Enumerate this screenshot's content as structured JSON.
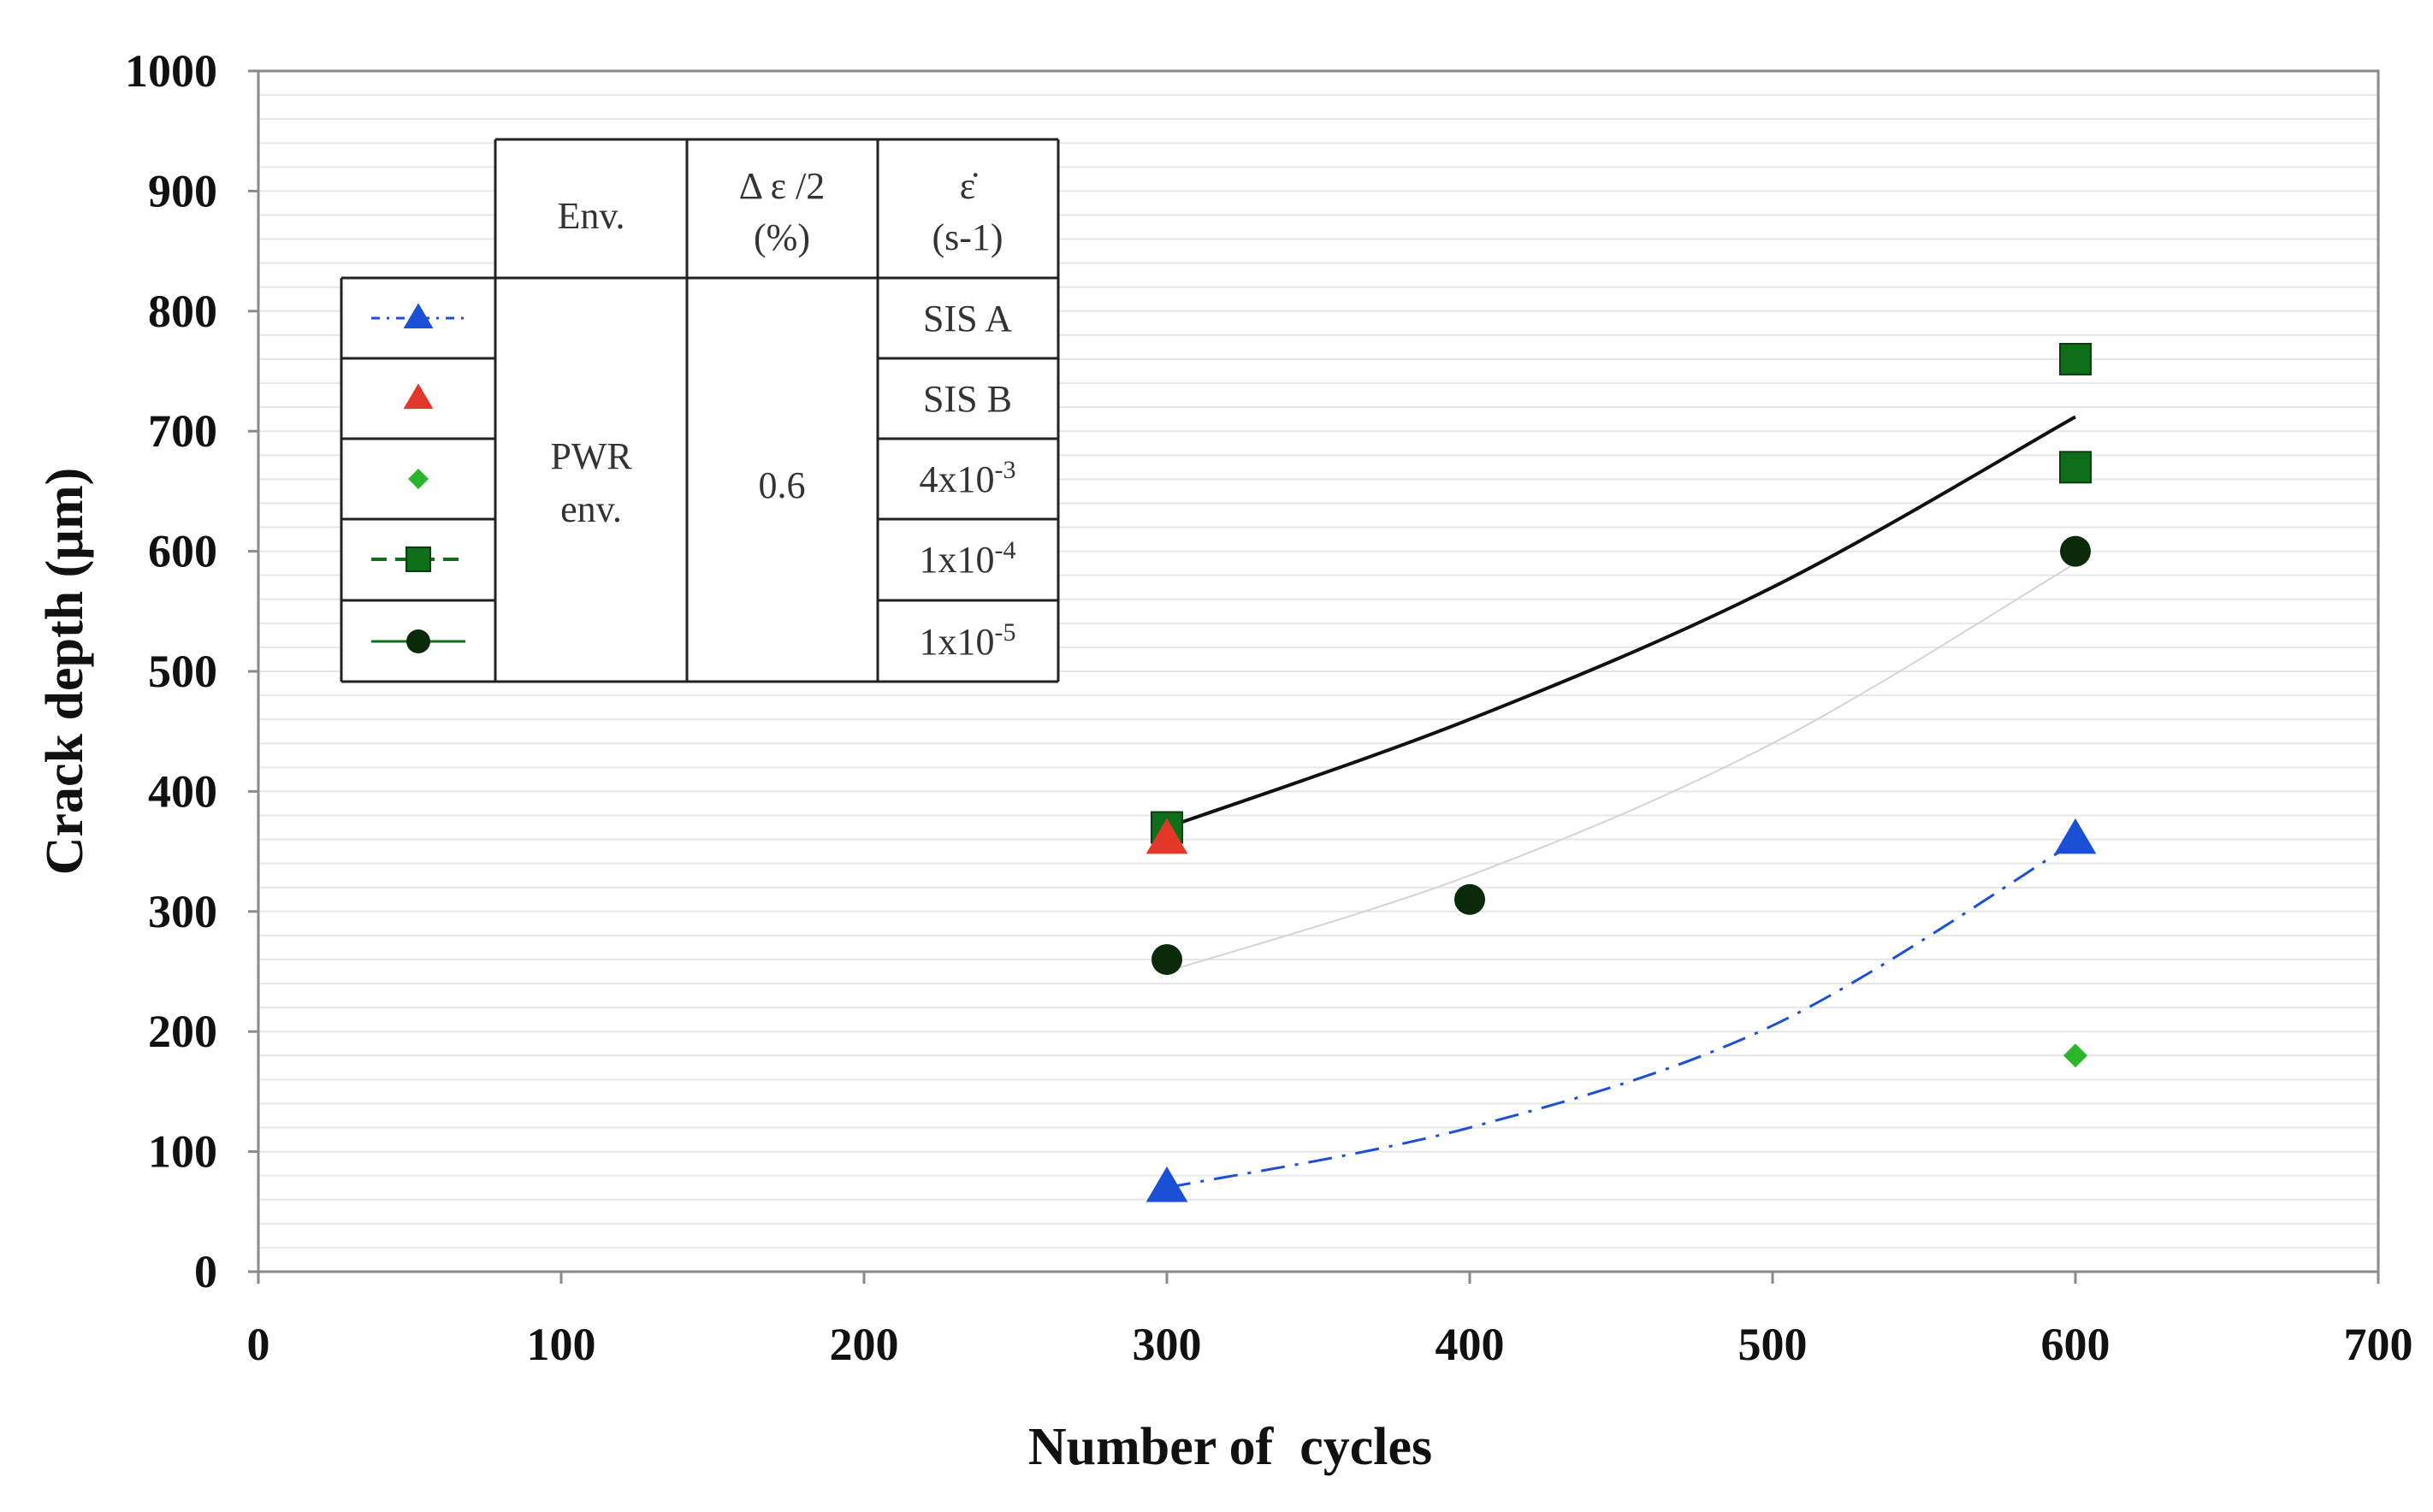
{
  "chart_data": {
    "type": "scatter",
    "title": "",
    "xlabel": "Number of  cycles",
    "ylabel": "Crack depth (µm)",
    "xlim": [
      0,
      700
    ],
    "ylim": [
      0,
      1000
    ],
    "xticks": [
      0,
      100,
      200,
      300,
      400,
      500,
      600,
      700
    ],
    "yticks": [
      0,
      100,
      200,
      300,
      400,
      500,
      600,
      700,
      800,
      900,
      1000
    ],
    "minor_gridlines": true,
    "series": [
      {
        "name": "SIS A",
        "marker": "triangle",
        "color": "#1a4fd6",
        "line": "dash-dot",
        "points": [
          {
            "x": 300,
            "y": 70
          },
          {
            "x": 600,
            "y": 360
          }
        ],
        "trend": [
          {
            "x": 300,
            "y": 70
          },
          {
            "x": 400,
            "y": 120
          },
          {
            "x": 500,
            "y": 205
          },
          {
            "x": 600,
            "y": 358
          }
        ]
      },
      {
        "name": "SIS B",
        "marker": "triangle",
        "color": "#e2372a",
        "line": "none",
        "points": [
          {
            "x": 300,
            "y": 360
          }
        ]
      },
      {
        "name": "4x10-3",
        "marker": "diamond",
        "color": "#2bb52b",
        "line": "none",
        "points": [
          {
            "x": 600,
            "y": 180
          }
        ]
      },
      {
        "name": "1x10-4",
        "marker": "square",
        "color": "#0f6e1a",
        "line": "solid",
        "line_color": "#111111",
        "points": [
          {
            "x": 300,
            "y": 370
          },
          {
            "x": 600,
            "y": 760
          },
          {
            "x": 600,
            "y": 670
          }
        ],
        "trend": [
          {
            "x": 300,
            "y": 370
          },
          {
            "x": 400,
            "y": 460
          },
          {
            "x": 500,
            "y": 570
          },
          {
            "x": 600,
            "y": 712
          }
        ]
      },
      {
        "name": "1x10-5",
        "marker": "circle",
        "color": "#0a2a0a",
        "line": "thin",
        "line_color": "#d4d4d4",
        "points": [
          {
            "x": 300,
            "y": 260
          },
          {
            "x": 400,
            "y": 310
          },
          {
            "x": 600,
            "y": 600
          }
        ],
        "trend": [
          {
            "x": 300,
            "y": 250
          },
          {
            "x": 400,
            "y": 330
          },
          {
            "x": 500,
            "y": 440
          },
          {
            "x": 600,
            "y": 590
          }
        ]
      }
    ],
    "legend_table": {
      "position": "top-left",
      "header": {
        "env": "Env.",
        "strain_line1": "Δ ε /2",
        "strain_line2": "(%)",
        "rate_line1": "ε̇",
        "rate_line2": "(s-1)"
      },
      "env_value_line1": "PWR",
      "env_value_line2": "env.",
      "strain_value": "0.6",
      "rows": [
        {
          "label": "SIS A"
        },
        {
          "label": "SIS B"
        },
        {
          "label": "4x10",
          "exp": "-3"
        },
        {
          "label": "1x10",
          "exp": "-4"
        },
        {
          "label": "1x10",
          "exp": "-5"
        }
      ]
    }
  }
}
